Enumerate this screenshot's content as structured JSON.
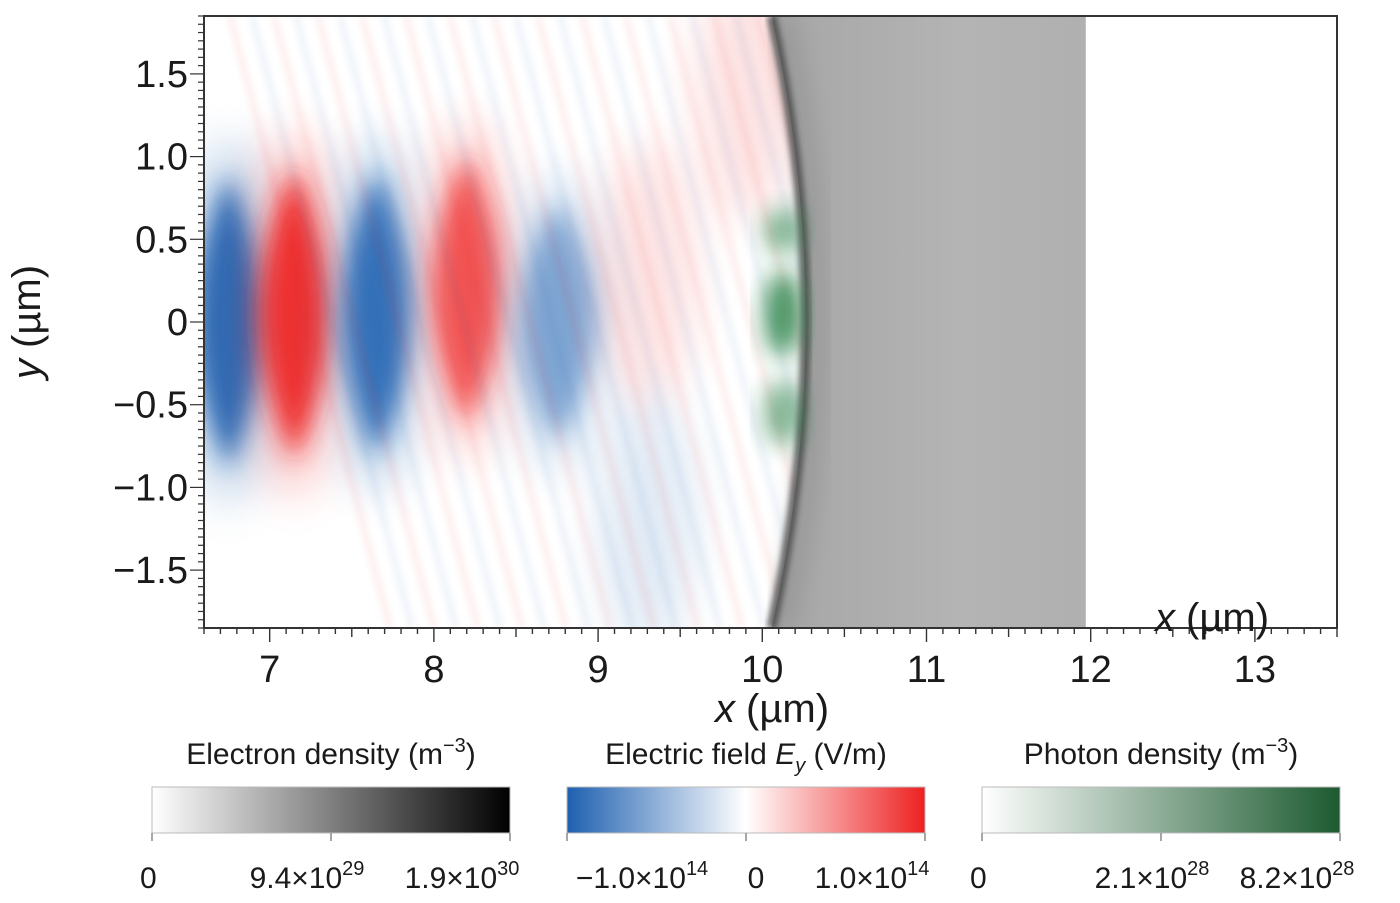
{
  "chart_data": {
    "type": "heatmap",
    "title": "",
    "xlabel": "x (µm)",
    "ylabel": "y (µm)",
    "inner_xlabel": "x (µm)",
    "xlim": [
      6.6,
      13.5
    ],
    "ylim": [
      -1.85,
      1.85
    ],
    "x_ticks": [
      7,
      8,
      9,
      10,
      11,
      12,
      13
    ],
    "x_tick_labels": [
      "7",
      "8",
      "9",
      "10",
      "11",
      "12",
      "13"
    ],
    "y_ticks": [
      1.5,
      1.0,
      0.5,
      0,
      -0.5,
      -1.0,
      -1.5
    ],
    "y_tick_labels": [
      "1.5",
      "1.0",
      "0.5",
      "0",
      "−0.5",
      "−1.0",
      "−1.5"
    ],
    "grid": false,
    "fields": {
      "electric_field_lobes": [
        {
          "x": 6.75,
          "y": 0.0,
          "sign": "negative",
          "strength": 0.95
        },
        {
          "x": 7.15,
          "y": 0.05,
          "sign": "positive",
          "strength": 0.95
        },
        {
          "x": 7.65,
          "y": 0.05,
          "sign": "negative",
          "strength": 0.9
        },
        {
          "x": 8.2,
          "y": 0.2,
          "sign": "positive",
          "strength": 0.75
        },
        {
          "x": 8.75,
          "y": 0.0,
          "sign": "negative",
          "strength": 0.5
        },
        {
          "x": 9.3,
          "y": 0.3,
          "sign": "positive",
          "strength": 0.25
        },
        {
          "x": 9.9,
          "y": 1.4,
          "sign": "positive",
          "strength": 0.25
        },
        {
          "x": 9.3,
          "y": -1.2,
          "sign": "negative",
          "strength": 0.25
        }
      ],
      "electron_density_region": {
        "x_start": 10.3,
        "x_end": 11.97,
        "front_shape": "curved"
      },
      "photon_density_region": {
        "x_start": 10.0,
        "x_end": 10.25,
        "y_range": [
          -0.85,
          0.85
        ]
      }
    },
    "colorbars": [
      {
        "name": "electron-density",
        "title": "Electron density (m",
        "title_sup": "−3",
        "title_end": ")",
        "colors": [
          "#ffffff",
          "#000000"
        ],
        "ticks": [
          {
            "base": "0",
            "sup": ""
          },
          {
            "base": "9.4×10",
            "sup": "29"
          },
          {
            "base": "1.9×10",
            "sup": "30"
          }
        ]
      },
      {
        "name": "electric-field",
        "title": "Electric field ",
        "title_var": "E",
        "title_sub": "y",
        "title_end": " (V/m)",
        "colors": [
          "#1e60b0",
          "#ffffff",
          "#ee2020"
        ],
        "ticks": [
          {
            "base": "−1.0×10",
            "sup": "14"
          },
          {
            "base": "0",
            "sup": ""
          },
          {
            "base": "1.0×10",
            "sup": "14"
          }
        ]
      },
      {
        "name": "photon-density",
        "title": "Photon density (m",
        "title_sup": "−3",
        "title_end": ")",
        "colors": [
          "#ffffff",
          "#1c5a30"
        ],
        "ticks": [
          {
            "base": "0",
            "sup": ""
          },
          {
            "base": "2.1×10",
            "sup": "28"
          },
          {
            "base": "8.2×10",
            "sup": "28"
          }
        ]
      }
    ]
  }
}
